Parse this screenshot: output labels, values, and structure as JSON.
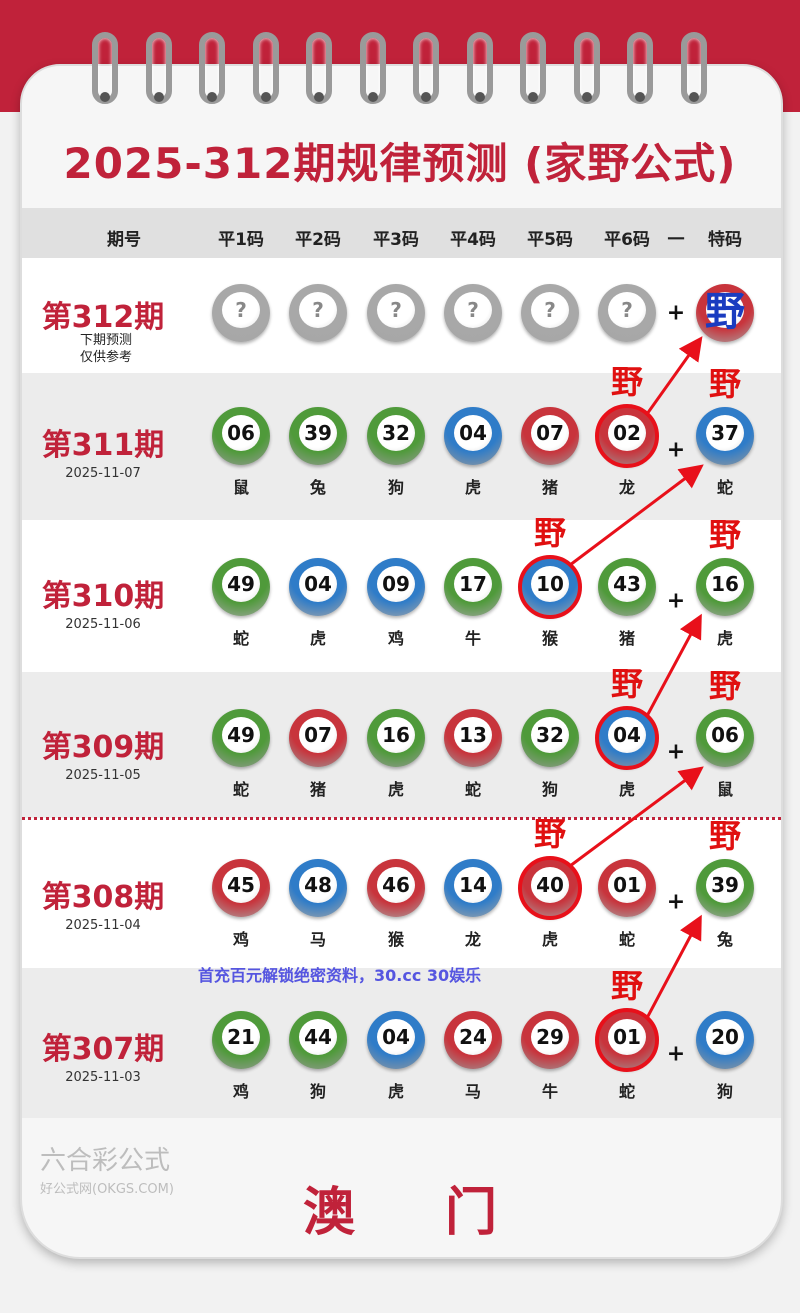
{
  "title": "2025-312期规律预测 (家野公式)",
  "header": {
    "period": "期号",
    "cols": [
      "平1码",
      "平2码",
      "平3码",
      "平4码",
      "平5码",
      "平6码"
    ],
    "sep": "一",
    "special": "特码"
  },
  "next": {
    "label": "第312期",
    "note1": "下期预测",
    "note2": "仅供参考",
    "placeholder": "?",
    "plus": "+",
    "special": "野"
  },
  "marker": "野",
  "rows": [
    {
      "label": "第311期",
      "date": "2025-11-07",
      "balls": [
        {
          "n": "06",
          "z": "鼠",
          "c": "green"
        },
        {
          "n": "39",
          "z": "兔",
          "c": "green"
        },
        {
          "n": "32",
          "z": "狗",
          "c": "green"
        },
        {
          "n": "04",
          "z": "虎",
          "c": "blue"
        },
        {
          "n": "07",
          "z": "猪",
          "c": "red"
        },
        {
          "n": "02",
          "z": "龙",
          "c": "red"
        }
      ],
      "special": {
        "n": "37",
        "z": "蛇",
        "c": "blue"
      },
      "circled": 5
    },
    {
      "label": "第310期",
      "date": "2025-11-06",
      "balls": [
        {
          "n": "49",
          "z": "蛇",
          "c": "green"
        },
        {
          "n": "04",
          "z": "虎",
          "c": "blue"
        },
        {
          "n": "09",
          "z": "鸡",
          "c": "blue"
        },
        {
          "n": "17",
          "z": "牛",
          "c": "green"
        },
        {
          "n": "10",
          "z": "猴",
          "c": "blue"
        },
        {
          "n": "43",
          "z": "猪",
          "c": "green"
        }
      ],
      "special": {
        "n": "16",
        "z": "虎",
        "c": "green"
      },
      "circled": 4
    },
    {
      "label": "第309期",
      "date": "2025-11-05",
      "balls": [
        {
          "n": "49",
          "z": "蛇",
          "c": "green"
        },
        {
          "n": "07",
          "z": "猪",
          "c": "red"
        },
        {
          "n": "16",
          "z": "虎",
          "c": "green"
        },
        {
          "n": "13",
          "z": "蛇",
          "c": "red"
        },
        {
          "n": "32",
          "z": "狗",
          "c": "green"
        },
        {
          "n": "04",
          "z": "虎",
          "c": "blue"
        }
      ],
      "special": {
        "n": "06",
        "z": "鼠",
        "c": "green"
      },
      "circled": 5
    },
    {
      "label": "第308期",
      "date": "2025-11-04",
      "balls": [
        {
          "n": "45",
          "z": "鸡",
          "c": "red"
        },
        {
          "n": "48",
          "z": "马",
          "c": "blue"
        },
        {
          "n": "46",
          "z": "猴",
          "c": "red"
        },
        {
          "n": "14",
          "z": "龙",
          "c": "blue"
        },
        {
          "n": "40",
          "z": "虎",
          "c": "red"
        },
        {
          "n": "01",
          "z": "蛇",
          "c": "red"
        }
      ],
      "special": {
        "n": "39",
        "z": "兔",
        "c": "green"
      },
      "circled": 4
    },
    {
      "label": "第307期",
      "date": "2025-11-03",
      "balls": [
        {
          "n": "21",
          "z": "鸡",
          "c": "green"
        },
        {
          "n": "44",
          "z": "狗",
          "c": "green"
        },
        {
          "n": "04",
          "z": "虎",
          "c": "blue"
        },
        {
          "n": "24",
          "z": "马",
          "c": "red"
        },
        {
          "n": "29",
          "z": "牛",
          "c": "red"
        },
        {
          "n": "01",
          "z": "蛇",
          "c": "red"
        }
      ],
      "special": {
        "n": "20",
        "z": "狗",
        "c": "blue"
      },
      "circled": 5
    }
  ],
  "ad": "首充百元解锁绝密资料，30.cc 30娱乐",
  "footer": "澳门",
  "watermark": {
    "main": "六合彩公式",
    "sub": "好公式网(OKGS.COM)"
  },
  "colors": {
    "red": "#c8343c",
    "green": "#4f9a3a",
    "blue": "#2f7cc8",
    "gray": "#a8a8a8",
    "accent": "#c0223a"
  }
}
